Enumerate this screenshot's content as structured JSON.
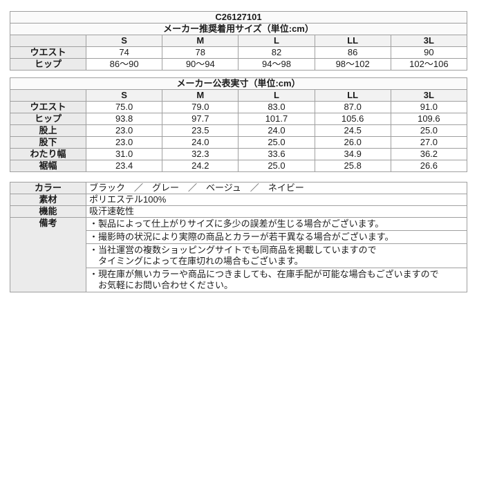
{
  "colors": {
    "page_bg": "#ffffff",
    "border_outer": "#7d7d7d",
    "border_cell": "#9f9f9f",
    "label_bg": "#ebebeb",
    "size_header_bg": "#f2f2f2",
    "title_bg": "#fafafa"
  },
  "recommended": {
    "product_code": "C26127101",
    "title": "メーカー推奨着用サイズ（単位:cm）",
    "columns": [
      "S",
      "M",
      "L",
      "LL",
      "3L"
    ],
    "rows": [
      {
        "label": "ウエスト",
        "values": [
          "74",
          "78",
          "82",
          "86",
          "90"
        ]
      },
      {
        "label": "ヒップ",
        "values": [
          "86～90",
          "90～94",
          "94～98",
          "98～102",
          "102～106"
        ]
      }
    ]
  },
  "measured": {
    "title": "メーカー公表実寸（単位:cm）",
    "columns": [
      "S",
      "M",
      "L",
      "LL",
      "3L"
    ],
    "rows": [
      {
        "label": "ウエスト",
        "values": [
          "75.0",
          "79.0",
          "83.0",
          "87.0",
          "91.0"
        ]
      },
      {
        "label": "ヒップ",
        "values": [
          "93.8",
          "97.7",
          "101.7",
          "105.6",
          "109.6"
        ]
      },
      {
        "label": "股上",
        "values": [
          "23.0",
          "23.5",
          "24.0",
          "24.5",
          "25.0"
        ]
      },
      {
        "label": "股下",
        "values": [
          "23.0",
          "24.0",
          "25.0",
          "26.0",
          "27.0"
        ]
      },
      {
        "label": "わたり幅",
        "values": [
          "31.0",
          "32.3",
          "33.6",
          "34.9",
          "36.2"
        ]
      },
      {
        "label": "裾幅",
        "values": [
          "23.4",
          "24.2",
          "25.0",
          "25.8",
          "26.6"
        ]
      }
    ]
  },
  "info": {
    "rows": [
      {
        "label": "カラー",
        "value": "ブラック　／　グレー　／　ベージュ　／　ネイビー"
      },
      {
        "label": "素材",
        "value": "ポリエステル100%"
      },
      {
        "label": "機能",
        "value": "吸汗速乾性"
      }
    ],
    "notes_label": "備考",
    "notes": [
      {
        "lines": [
          "・製品によって仕上がりサイズに多少の誤差が生じる場合がございます。"
        ]
      },
      {
        "lines": [
          "・撮影時の状況により実際の商品とカラーが若干異なる場合がございます。"
        ]
      },
      {
        "lines": [
          "・当社運営の複数ショッピングサイトでも同商品を掲載していますので",
          "　タイミングによって在庫切れの場合もございます。"
        ]
      },
      {
        "lines": [
          "・現在庫が無いカラーや商品につきましても、在庫手配が可能な場合もございますので",
          "　お気軽にお問い合わせください。"
        ]
      }
    ]
  }
}
